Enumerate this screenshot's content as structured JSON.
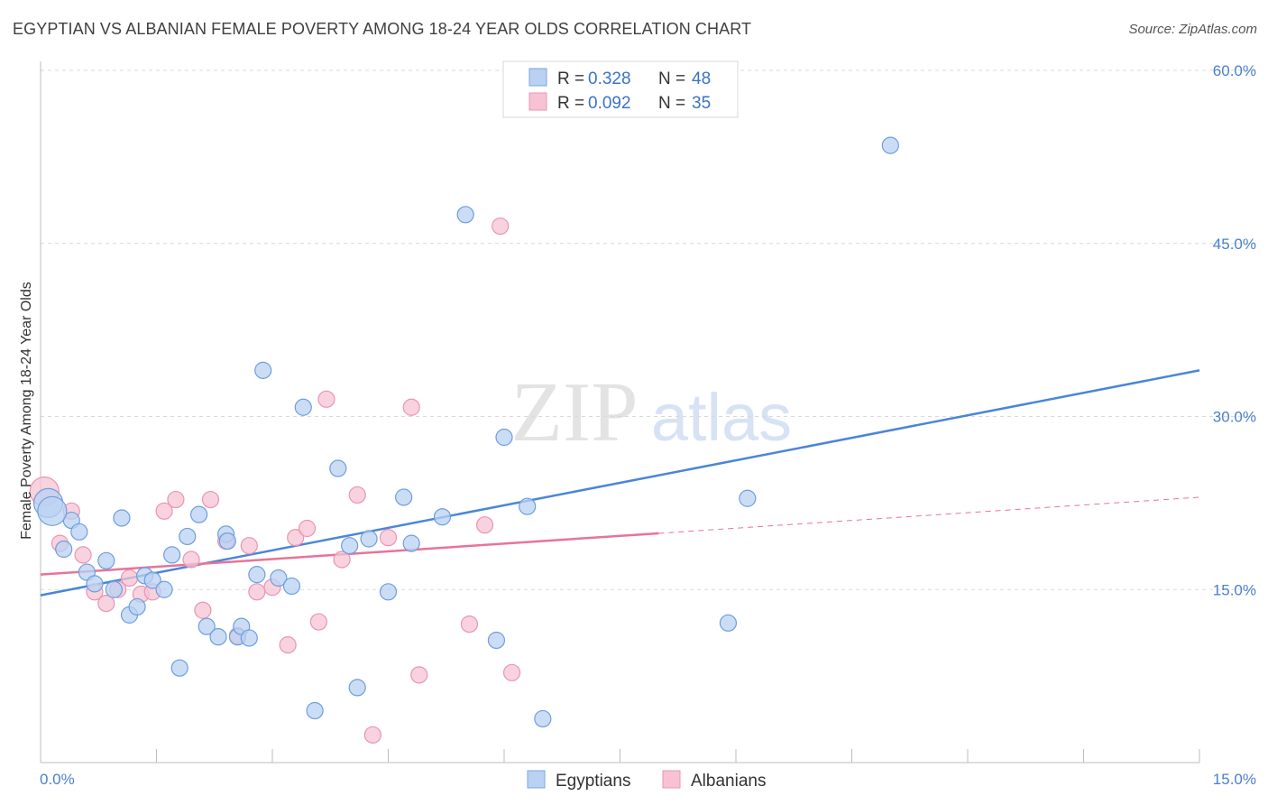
{
  "header": {
    "title": "EGYPTIAN VS ALBANIAN FEMALE POVERTY AMONG 18-24 YEAR OLDS CORRELATION CHART",
    "source": "Source: ZipAtlas.com"
  },
  "watermark": {
    "zip": "ZIP",
    "atlas": "atlas"
  },
  "colors": {
    "blue": "#4a86d8",
    "blue_fill": "#b9d1f2",
    "pink": "#e87399",
    "pink_fill": "#f7c3d4",
    "grid": "#d9d9d9",
    "tick_label": "#4a7fd0"
  },
  "legend_top": {
    "rows": [
      {
        "r_label": "R =",
        "r_value": "0.328",
        "n_label": "N =",
        "n_value": "48"
      },
      {
        "r_label": "R =",
        "r_value": "0.092",
        "n_label": "N =",
        "n_value": "35"
      }
    ]
  },
  "legend_bottom": {
    "items": [
      "Egyptians",
      "Albanians"
    ]
  },
  "chart_data": {
    "type": "scatter",
    "title": "EGYPTIAN VS ALBANIAN FEMALE POVERTY AMONG 18-24 YEAR OLDS CORRELATION CHART",
    "xlabel": "",
    "ylabel": "Female Poverty Among 18-24 Year Olds",
    "xlim": [
      0,
      15
    ],
    "ylim": [
      0,
      60
    ],
    "x_tick_labels": [
      "0.0%",
      "15.0%"
    ],
    "y_ticks": [
      15,
      30,
      45,
      60
    ],
    "y_tick_labels": [
      "15.0%",
      "30.0%",
      "45.0%",
      "60.0%"
    ],
    "grid": true,
    "legend_placement": "top-center",
    "series": [
      {
        "name": "Egyptians",
        "color": "#4a86d8",
        "r": 0.328,
        "n": 48,
        "trend": {
          "x": [
            0,
            15
          ],
          "y": [
            14.5,
            34.0
          ],
          "dashed_from": null
        },
        "points": [
          [
            0.1,
            22.5
          ],
          [
            0.3,
            18.5
          ],
          [
            0.4,
            21.0
          ],
          [
            0.5,
            20.0
          ],
          [
            0.6,
            16.5
          ],
          [
            0.7,
            15.5
          ],
          [
            0.85,
            17.5
          ],
          [
            0.95,
            15.0
          ],
          [
            1.05,
            21.2
          ],
          [
            1.15,
            12.8
          ],
          [
            1.25,
            13.5
          ],
          [
            1.35,
            16.2
          ],
          [
            1.45,
            15.8
          ],
          [
            1.6,
            15.0
          ],
          [
            1.7,
            18.0
          ],
          [
            1.8,
            8.2
          ],
          [
            1.9,
            19.6
          ],
          [
            2.05,
            21.5
          ],
          [
            2.15,
            11.8
          ],
          [
            2.3,
            10.9
          ],
          [
            2.4,
            19.8
          ],
          [
            2.55,
            10.9
          ],
          [
            2.6,
            11.8
          ],
          [
            2.7,
            10.8
          ],
          [
            2.8,
            16.3
          ],
          [
            2.88,
            34.0
          ],
          [
            3.08,
            16.0
          ],
          [
            3.25,
            15.3
          ],
          [
            3.4,
            30.8
          ],
          [
            3.55,
            4.5
          ],
          [
            3.85,
            25.5
          ],
          [
            4.0,
            18.8
          ],
          [
            4.1,
            6.5
          ],
          [
            4.25,
            19.4
          ],
          [
            4.5,
            14.8
          ],
          [
            4.7,
            23.0
          ],
          [
            4.8,
            19.0
          ],
          [
            5.2,
            21.3
          ],
          [
            5.5,
            47.5
          ],
          [
            5.9,
            10.6
          ],
          [
            6.0,
            28.2
          ],
          [
            6.3,
            22.2
          ],
          [
            6.5,
            3.8
          ],
          [
            8.9,
            12.1
          ],
          [
            9.15,
            22.9
          ],
          [
            11.0,
            53.5
          ],
          [
            0.15,
            21.8
          ],
          [
            2.42,
            19.2
          ]
        ]
      },
      {
        "name": "Albanians",
        "color": "#e87399",
        "r": 0.092,
        "n": 35,
        "trend": {
          "x": [
            0,
            15
          ],
          "y": [
            16.3,
            23.0
          ],
          "dashed_from": 8.0
        },
        "points": [
          [
            0.05,
            23.5
          ],
          [
            0.25,
            19.0
          ],
          [
            0.4,
            21.8
          ],
          [
            0.55,
            18.0
          ],
          [
            0.7,
            14.8
          ],
          [
            0.85,
            13.8
          ],
          [
            1.0,
            15.0
          ],
          [
            1.15,
            16.0
          ],
          [
            1.3,
            14.6
          ],
          [
            1.45,
            14.8
          ],
          [
            1.6,
            21.8
          ],
          [
            1.75,
            22.8
          ],
          [
            1.95,
            17.6
          ],
          [
            2.1,
            13.2
          ],
          [
            2.2,
            22.8
          ],
          [
            2.4,
            19.2
          ],
          [
            2.55,
            11.0
          ],
          [
            2.7,
            18.8
          ],
          [
            2.8,
            14.8
          ],
          [
            3.0,
            15.2
          ],
          [
            3.2,
            10.2
          ],
          [
            3.3,
            19.5
          ],
          [
            3.45,
            20.3
          ],
          [
            3.6,
            12.2
          ],
          [
            3.7,
            31.5
          ],
          [
            3.9,
            17.6
          ],
          [
            4.1,
            23.2
          ],
          [
            4.3,
            2.4
          ],
          [
            4.5,
            19.5
          ],
          [
            4.8,
            30.8
          ],
          [
            4.9,
            7.6
          ],
          [
            5.55,
            12.0
          ],
          [
            5.75,
            20.6
          ],
          [
            5.95,
            46.5
          ],
          [
            6.1,
            7.8
          ]
        ]
      }
    ]
  }
}
